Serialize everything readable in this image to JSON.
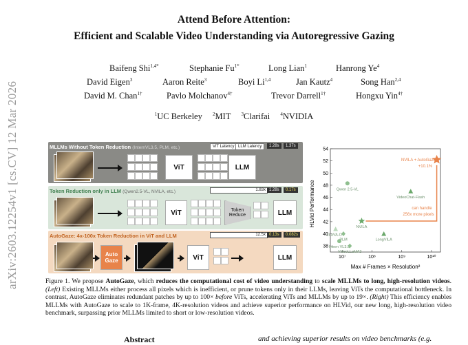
{
  "arxiv_id": "arXiv:2603.12254v1  [cs.CV]  12 Mar 2026",
  "title_line1": "Attend Before Attention:",
  "title_line2": "Efficient and Scalable Video Understanding via Autoregressive Gazing",
  "authors": [
    {
      "name": "Baifeng Shi",
      "sup": "1,4*"
    },
    {
      "name": "Stephanie Fu",
      "sup": "1*"
    },
    {
      "name": "Long Lian",
      "sup": "1"
    },
    {
      "name": "Hanrong Ye",
      "sup": "4"
    },
    {
      "name": "David Eigen",
      "sup": "3"
    },
    {
      "name": "Aaron Reite",
      "sup": "3"
    },
    {
      "name": "Boyi Li",
      "sup": "1,4"
    },
    {
      "name": "Jan Kautz",
      "sup": "4"
    },
    {
      "name": "Song Han",
      "sup": "2,4"
    },
    {
      "name": "David M. Chan",
      "sup": "1†"
    },
    {
      "name": "Pavlo Molchanov",
      "sup": "4†"
    },
    {
      "name": "Trevor Darrell",
      "sup": "1†"
    },
    {
      "name": "Hongxu Yin",
      "sup": "4†"
    }
  ],
  "affiliations": [
    {
      "num": "1",
      "name": "UC Berkeley"
    },
    {
      "num": "2",
      "name": "MIT"
    },
    {
      "num": "3",
      "name": "Clarifai"
    },
    {
      "num": "4",
      "name": "NVIDIA"
    }
  ],
  "figure": {
    "panel1": {
      "title": "MLLMs Without Token Reduction",
      "subtitle": "(InternVL3.5, PLM, etc.)",
      "legend_vit": "ViT Latency",
      "legend_llm": "LLM Latency",
      "t1": "1.28s",
      "t2": "1.37s",
      "vit": "ViT",
      "llm": "LLM"
    },
    "panel2": {
      "title": "Token Reduction only in LLM",
      "subtitle": "(Qwen2.5-VL, NVILA, etc.)",
      "speed": "1.83x",
      "t1": "1.28s",
      "t2": "0.17s",
      "vit": "ViT",
      "reduce": "Token Reduce",
      "llm": "LLM"
    },
    "panel3": {
      "title": "AutoGaze: 4x-100x Token Reduction in ViT and LLM",
      "speed": "12.5x",
      "t1": "0.13s",
      "t2": "0.082s",
      "gaze": "Auto Gaze",
      "vit": "ViT",
      "llm": "LLM"
    }
  },
  "chart_data": {
    "type": "scatter",
    "xlabel": "Max # Frames × Resolution²",
    "ylabel": "HLVid Performance",
    "xscale": "log",
    "xlim": [
      4000000,
      20000000000
    ],
    "ylim": [
      37,
      54
    ],
    "yticks": [
      38,
      40,
      42,
      44,
      46,
      48,
      50,
      52,
      54
    ],
    "xtick_labels": [
      "10⁷",
      "10⁸",
      "10⁹",
      "10¹⁰"
    ],
    "points": [
      {
        "label": "Qwen 2.5-VL",
        "x": 15000000,
        "y": 48.3,
        "color": "#8fbf8f",
        "marker": "circle"
      },
      {
        "label": "VideoChat-Flash",
        "x": 2000000000,
        "y": 47.0,
        "color": "#6aa86a",
        "marker": "triangle"
      },
      {
        "label": "LLaVA-OV",
        "x": 6000000,
        "y": 40.8,
        "color": "#bcd9bc",
        "marker": "triangle"
      },
      {
        "label": "PLM",
        "x": 11000000,
        "y": 40.0,
        "color": "#8fbf8f",
        "marker": "diamond"
      },
      {
        "label": "Intern VL3.5",
        "x": 8000000,
        "y": 38.8,
        "color": "#8fbf8f",
        "marker": "circle"
      },
      {
        "label": "NVILA",
        "x": 45000000,
        "y": 42.1,
        "color": "#6aa86a",
        "marker": "star"
      },
      {
        "label": "LongVILA",
        "x": 250000000,
        "y": 40.0,
        "color": "#6aa86a",
        "marker": "triangle"
      },
      {
        "label": "VideoLLaMA3",
        "x": 18000000,
        "y": 38.0,
        "color": "#8fbf8f",
        "marker": "diamond"
      },
      {
        "label": "NVILA + AutoGaze",
        "x": 15000000000,
        "y": 52.2,
        "color": "#e8834a",
        "marker": "star"
      }
    ],
    "annotations": [
      "NVILA + AutoGaze",
      "+10.1%",
      "can handle",
      "256x more pixels"
    ]
  },
  "caption": {
    "lead": "Figure 1. We propose ",
    "name": "AutoGaze",
    "b1": ", which ",
    "bold1": "reduces the computational cost of video understanding",
    "b2": " to ",
    "bold2": "scale MLLMs to long, high-resolution videos",
    "b3": ". ",
    "left": "(Left)",
    "b4": " Existing MLLMs either process all pixels which is inefficient, or prune tokens only in their LLMs, leaving ViTs the computational bottleneck. In contrast, AutoGaze eliminates redundant patches by up to 100× ",
    "before": "before",
    "b5": " ViTs, accelerating ViTs and MLLMs by up to 19×. ",
    "right": "(Right)",
    "b6": " This efficiency enables MLLMs with AutoGaze to scale to 1K-frame, 4K-resolution videos and achieve superior performance on HLVid, our new long, high-resolution video benchmark, surpassing prior MLLMs limited to short or low-resolution videos."
  },
  "abstract_title": "Abstract",
  "abstract_snippet": "and achieving superior results on video benchmarks (e.g."
}
